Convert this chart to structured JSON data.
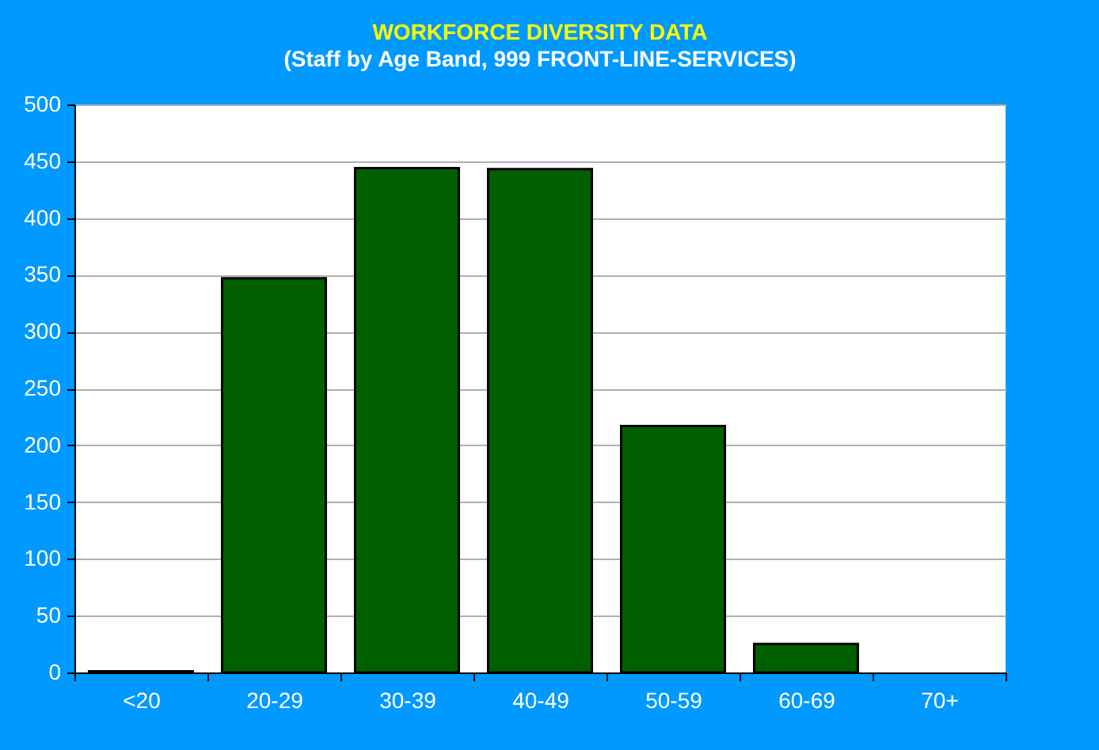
{
  "chart_data": {
    "type": "bar",
    "title": "WORKFORCE DIVERSITY DATA",
    "subtitle": "(Staff by Age Band, 999 FRONT-LINE-SERVICES)",
    "categories": [
      "<20",
      "20-29",
      "30-39",
      "40-49",
      "50-59",
      "60-69",
      "70+"
    ],
    "values": [
      1,
      347,
      444,
      443,
      217,
      25,
      null
    ],
    "color": "#006000",
    "ylim": [
      0,
      500
    ],
    "yticks": [
      0,
      50,
      100,
      150,
      200,
      250,
      300,
      350,
      400,
      450,
      500
    ],
    "grid": "y"
  }
}
